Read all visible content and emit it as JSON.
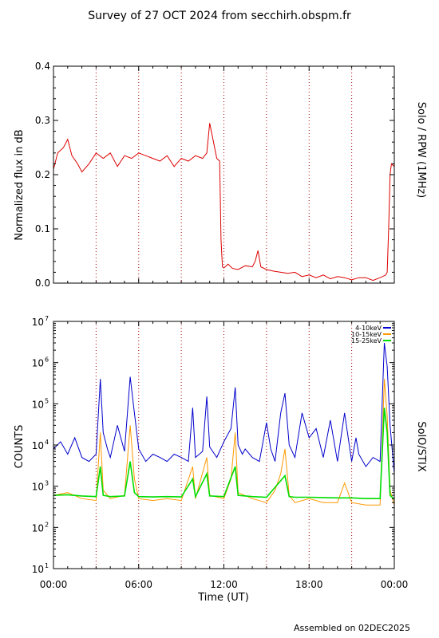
{
  "page": {
    "title": "Survey of 27 OCT 2024 from secchirh.obspm.fr",
    "footer": "Assembled on 02DEC2025"
  },
  "colors": {
    "solo": "#dd0000",
    "stix_4_10": "#0000cc",
    "stix_10_15": "#ff9900",
    "stix_15_25": "#00dd00",
    "vlines": "#aa0000"
  },
  "chart_data": [
    {
      "type": "line",
      "ylabel": "Normalized flux in dB",
      "right_label": "Solo / RPW (1MHz)",
      "xlim": [
        0,
        24
      ],
      "ylim": [
        0.0,
        0.4
      ],
      "y_ticks": [
        "0.0",
        "0.1",
        "0.2",
        "0.3",
        "0.4"
      ],
      "vertical_lines_hours": [
        3,
        6,
        9,
        12,
        15,
        18,
        21
      ],
      "series": [
        {
          "color": "#dd0000",
          "x": [
            0,
            0.3,
            0.7,
            1.0,
            1.3,
            1.7,
            2.0,
            2.5,
            3.0,
            3.5,
            4.0,
            4.5,
            5.0,
            5.5,
            6.0,
            6.5,
            7.0,
            7.5,
            8.0,
            8.5,
            9.0,
            9.5,
            10.0,
            10.5,
            10.8,
            11.0,
            11.5,
            11.7,
            11.8,
            11.9,
            12.0,
            12.3,
            12.6,
            13.0,
            13.5,
            14.0,
            14.2,
            14.4,
            14.6,
            15.0,
            15.5,
            16.0,
            16.5,
            17.0,
            17.5,
            18.0,
            18.5,
            19.0,
            19.5,
            20.0,
            20.5,
            21.0,
            21.5,
            22.0,
            22.5,
            23.0,
            23.4,
            23.5,
            23.6,
            23.7,
            23.8,
            24.0
          ],
          "y": [
            0.21,
            0.24,
            0.25,
            0.265,
            0.235,
            0.22,
            0.205,
            0.22,
            0.24,
            0.23,
            0.24,
            0.215,
            0.235,
            0.23,
            0.24,
            0.235,
            0.23,
            0.225,
            0.235,
            0.215,
            0.23,
            0.225,
            0.235,
            0.23,
            0.24,
            0.295,
            0.23,
            0.225,
            0.08,
            0.03,
            0.028,
            0.035,
            0.027,
            0.025,
            0.032,
            0.03,
            0.04,
            0.06,
            0.03,
            0.025,
            0.022,
            0.02,
            0.018,
            0.02,
            0.012,
            0.015,
            0.01,
            0.015,
            0.008,
            0.012,
            0.01,
            0.006,
            0.01,
            0.01,
            0.005,
            0.01,
            0.015,
            0.02,
            0.1,
            0.2,
            0.22,
            0.215
          ]
        }
      ]
    },
    {
      "type": "line",
      "ylabel": "COUNTS",
      "right_label": "SolO/STIX",
      "xlabel": "Time (UT)",
      "xlim": [
        0,
        24
      ],
      "yscale": "log",
      "ylim": [
        10,
        10000000
      ],
      "y_tick_exponents": [
        "1",
        "2",
        "3",
        "4",
        "5",
        "6",
        "7"
      ],
      "x_ticks": [
        "00:00",
        "06:00",
        "12:00",
        "18:00",
        "00:00"
      ],
      "vertical_lines_hours": [
        3,
        6,
        9,
        12,
        15,
        18,
        21
      ],
      "legend_position": "top-right",
      "series": [
        {
          "name": "4-10keV",
          "color": "#0000cc",
          "x": [
            0,
            0.5,
            1.0,
            1.5,
            2.0,
            2.5,
            3.0,
            3.3,
            3.5,
            3.8,
            4.0,
            4.5,
            5.0,
            5.4,
            5.7,
            6.0,
            6.5,
            7.0,
            7.5,
            8.0,
            8.5,
            9.0,
            9.5,
            9.8,
            10.0,
            10.5,
            10.8,
            11.0,
            11.5,
            12.0,
            12.5,
            12.8,
            13.0,
            13.3,
            13.5,
            14.0,
            14.5,
            15.0,
            15.3,
            15.6,
            16.0,
            16.3,
            16.6,
            17.0,
            17.5,
            18.0,
            18.5,
            19.0,
            19.5,
            20.0,
            20.5,
            21.0,
            21.3,
            21.5,
            22.0,
            22.5,
            23.0,
            23.3,
            23.5,
            23.7,
            24.0
          ],
          "y": [
            8000,
            12000,
            6000,
            15000,
            5000,
            4000,
            6000,
            400000,
            20000,
            8000,
            5000,
            30000,
            7000,
            450000,
            60000,
            8000,
            4000,
            6000,
            5000,
            4000,
            6000,
            5000,
            4000,
            80000,
            5000,
            7000,
            150000,
            9000,
            5000,
            12000,
            25000,
            250000,
            10000,
            6000,
            8000,
            5000,
            4000,
            35000,
            8000,
            4000,
            60000,
            180000,
            10000,
            5000,
            60000,
            15000,
            25000,
            5000,
            40000,
            4000,
            60000,
            4000,
            15000,
            6000,
            3000,
            5000,
            4000,
            3000000,
            800000,
            30000,
            2000
          ]
        },
        {
          "name": "10-15keV",
          "color": "#ff9900",
          "x": [
            0,
            1.0,
            2.0,
            3.0,
            3.3,
            3.5,
            4.0,
            5.0,
            5.4,
            5.7,
            6.0,
            7.0,
            8.0,
            9.0,
            9.8,
            10.0,
            10.8,
            11.0,
            12.0,
            12.5,
            12.8,
            13.0,
            14.0,
            15.0,
            15.6,
            16.0,
            16.3,
            16.6,
            17.0,
            18.0,
            19.0,
            20.0,
            20.5,
            21.0,
            22.0,
            23.0,
            23.3,
            23.5,
            23.7,
            24.0
          ],
          "y": [
            600,
            700,
            500,
            450,
            20000,
            800,
            500,
            600,
            30000,
            1500,
            500,
            450,
            500,
            450,
            3000,
            500,
            5000,
            600,
            500,
            1500,
            20000,
            700,
            500,
            400,
            800,
            2000,
            8000,
            600,
            400,
            500,
            400,
            400,
            1200,
            400,
            350,
            350,
            400000,
            50000,
            800,
            350
          ]
        },
        {
          "name": "15-25keV",
          "color": "#00dd00",
          "x": [
            0,
            1.0,
            2.0,
            3.0,
            3.3,
            3.5,
            4.0,
            5.0,
            5.4,
            5.7,
            6.0,
            7.0,
            8.0,
            9.0,
            9.8,
            10.0,
            10.8,
            11.0,
            12.0,
            12.8,
            13.0,
            14.0,
            15.0,
            16.3,
            16.6,
            17.0,
            18.0,
            19.0,
            20.0,
            21.0,
            22.0,
            23.0,
            23.3,
            23.5,
            23.7,
            24.0
          ],
          "y": [
            600,
            620,
            580,
            560,
            3000,
            600,
            560,
            580,
            4000,
            700,
            560,
            550,
            560,
            550,
            1500,
            560,
            2000,
            580,
            560,
            3000,
            600,
            560,
            540,
            1800,
            560,
            540,
            540,
            530,
            520,
            520,
            500,
            500,
            80000,
            20000,
            600,
            480
          ]
        }
      ]
    }
  ]
}
